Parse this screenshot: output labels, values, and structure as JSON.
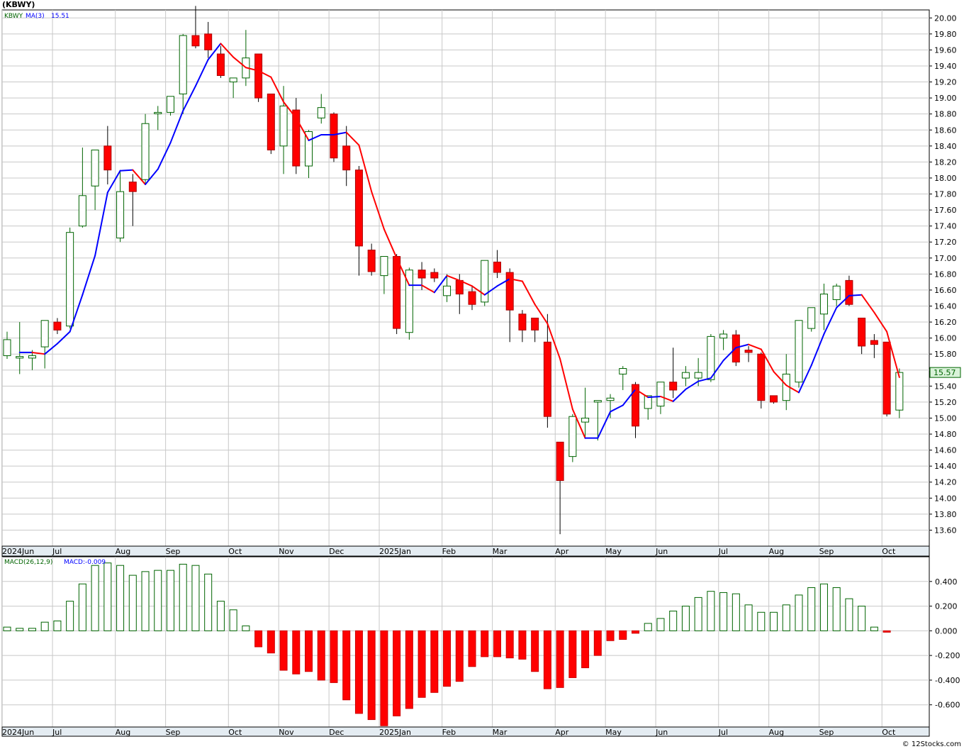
{
  "header": {
    "title": "(KBWY)"
  },
  "credit": "© 12Stocks.com",
  "colors": {
    "up": "#ffffff",
    "up_border": "#006400",
    "down": "#ff0000",
    "down_border": "#aa0000",
    "ma_up": "#0000ff",
    "ma_down": "#ff0000",
    "grid": "#c8c8c8",
    "macd_pos": "#ffffff",
    "macd_pos_border": "#006400",
    "macd_neg": "#ff0000",
    "last_price_bg": "#d9f2d9",
    "axis_band": "#e4ecf2"
  },
  "chart_data": [
    {
      "type": "candlestick",
      "legend": [
        {
          "label": "KBWY",
          "color": "#006400"
        },
        {
          "label": "MA(3)",
          "color": "#0000ff"
        },
        {
          "label": "15.51",
          "color": "#0000ff"
        }
      ],
      "last_price": "15.57",
      "ylim": [
        13.4,
        20.1
      ],
      "yticks": [
        "20.00",
        "19.80",
        "19.60",
        "19.40",
        "19.20",
        "19.00",
        "18.80",
        "18.60",
        "18.40",
        "18.20",
        "18.00",
        "17.80",
        "17.60",
        "17.40",
        "17.20",
        "17.00",
        "16.80",
        "16.60",
        "16.40",
        "16.20",
        "16.00",
        "15.80",
        "15.60",
        "15.40",
        "15.20",
        "15.00",
        "14.80",
        "14.60",
        "14.40",
        "14.20",
        "14.00",
        "13.80",
        "13.60"
      ],
      "month_labels": [
        "2024Jun",
        "Jul",
        "Aug",
        "Sep",
        "Oct",
        "Nov",
        "Dec",
        "2025Jan",
        "Feb",
        "Mar",
        "Apr",
        "May",
        "Jun",
        "Jul",
        "Aug",
        "Sep",
        "Oct"
      ],
      "month_weeks": [
        0,
        4,
        9,
        13,
        18,
        22,
        26,
        30,
        35,
        39,
        44,
        48,
        52,
        57,
        61,
        65,
        70
      ],
      "candles": [
        [
          15.78,
          16.08,
          15.74,
          15.98
        ],
        [
          15.75,
          16.2,
          15.55,
          15.77
        ],
        [
          15.75,
          15.85,
          15.6,
          15.78
        ],
        [
          15.89,
          16.22,
          15.62,
          16.22
        ],
        [
          16.2,
          16.25,
          16.05,
          16.1
        ],
        [
          16.15,
          17.38,
          16.12,
          17.32
        ],
        [
          17.4,
          18.38,
          17.38,
          17.78
        ],
        [
          17.9,
          18.35,
          17.6,
          18.35
        ],
        [
          18.4,
          18.65,
          17.92,
          18.1
        ],
        [
          17.25,
          18.1,
          17.2,
          17.83
        ],
        [
          17.95,
          18.05,
          17.4,
          17.83
        ],
        [
          17.98,
          18.8,
          17.93,
          18.68
        ],
        [
          18.82,
          18.9,
          18.6,
          18.82
        ],
        [
          18.82,
          19.02,
          18.78,
          19.02
        ],
        [
          19.05,
          19.8,
          18.8,
          19.78
        ],
        [
          19.78,
          20.15,
          19.62,
          19.65
        ],
        [
          19.8,
          19.95,
          19.5,
          19.6
        ],
        [
          19.55,
          19.65,
          19.25,
          19.28
        ],
        [
          19.2,
          19.25,
          19.0,
          19.25
        ],
        [
          19.25,
          19.85,
          19.15,
          19.5
        ],
        [
          19.55,
          19.55,
          18.95,
          19.0
        ],
        [
          19.05,
          19.05,
          18.3,
          18.35
        ],
        [
          18.4,
          19.15,
          18.05,
          18.9
        ],
        [
          18.85,
          19.0,
          18.05,
          18.15
        ],
        [
          18.15,
          18.6,
          18.0,
          18.58
        ],
        [
          18.75,
          19.05,
          18.68,
          18.88
        ],
        [
          18.8,
          18.82,
          18.2,
          18.25
        ],
        [
          18.4,
          18.65,
          17.9,
          18.1
        ],
        [
          18.1,
          18.15,
          16.78,
          17.15
        ],
        [
          17.1,
          17.18,
          16.78,
          16.83
        ],
        [
          16.78,
          17.0,
          16.55,
          17.02
        ],
        [
          17.02,
          17.05,
          16.05,
          16.12
        ],
        [
          16.07,
          16.88,
          15.98,
          16.85
        ],
        [
          16.85,
          16.95,
          16.6,
          16.75
        ],
        [
          16.82,
          16.87,
          16.7,
          16.75
        ],
        [
          16.53,
          16.8,
          16.45,
          16.65
        ],
        [
          16.72,
          16.8,
          16.3,
          16.55
        ],
        [
          16.58,
          16.65,
          16.35,
          16.42
        ],
        [
          16.45,
          16.95,
          16.4,
          16.97
        ],
        [
          16.95,
          17.1,
          16.75,
          16.82
        ],
        [
          16.82,
          16.87,
          15.95,
          16.35
        ],
        [
          16.3,
          16.35,
          15.95,
          16.1
        ],
        [
          16.25,
          16.25,
          15.95,
          16.1
        ],
        [
          15.95,
          16.3,
          14.88,
          15.02
        ],
        [
          14.7,
          14.7,
          13.55,
          14.22
        ],
        [
          14.52,
          15.05,
          14.45,
          15.02
        ],
        [
          14.95,
          15.38,
          14.75,
          15.0
        ],
        [
          15.2,
          15.22,
          14.72,
          15.22
        ],
        [
          15.22,
          15.3,
          15.0,
          15.25
        ],
        [
          15.55,
          15.65,
          15.35,
          15.62
        ],
        [
          15.42,
          15.45,
          14.75,
          14.9
        ],
        [
          15.12,
          15.28,
          14.98,
          15.28
        ],
        [
          15.15,
          15.45,
          15.05,
          15.45
        ],
        [
          15.45,
          15.88,
          15.25,
          15.35
        ],
        [
          15.5,
          15.65,
          15.4,
          15.57
        ],
        [
          15.5,
          15.75,
          15.4,
          15.57
        ],
        [
          15.48,
          16.05,
          15.45,
          16.02
        ],
        [
          16.0,
          16.1,
          15.85,
          16.05
        ],
        [
          16.04,
          16.1,
          15.65,
          15.7
        ],
        [
          15.85,
          15.9,
          15.7,
          15.82
        ],
        [
          15.8,
          15.82,
          15.12,
          15.22
        ],
        [
          15.28,
          15.28,
          15.18,
          15.2
        ],
        [
          15.22,
          15.8,
          15.1,
          15.55
        ],
        [
          15.45,
          16.22,
          15.38,
          16.22
        ],
        [
          16.12,
          16.38,
          16.08,
          16.38
        ],
        [
          16.3,
          16.68,
          16.1,
          16.55
        ],
        [
          16.48,
          16.68,
          16.4,
          16.65
        ],
        [
          16.72,
          16.78,
          16.4,
          16.42
        ],
        [
          16.25,
          16.25,
          15.8,
          15.9
        ],
        [
          15.97,
          16.05,
          15.75,
          15.92
        ],
        [
          15.95,
          15.95,
          15.02,
          15.05
        ],
        [
          15.1,
          15.62,
          15.0,
          15.57
        ]
      ],
      "ma": [
        [
          1,
          15.82
        ],
        [
          2,
          15.82
        ],
        [
          3,
          15.8
        ],
        [
          4,
          15.93
        ],
        [
          5,
          16.08
        ],
        [
          6,
          16.54
        ],
        [
          7,
          17.03
        ],
        [
          8,
          17.82
        ],
        [
          9,
          18.09
        ],
        [
          10,
          18.1
        ],
        [
          11,
          17.92
        ],
        [
          12,
          18.11
        ],
        [
          13,
          18.44
        ],
        [
          14,
          18.84
        ],
        [
          15,
          19.15
        ],
        [
          16,
          19.48
        ],
        [
          17,
          19.68
        ],
        [
          18,
          19.51
        ],
        [
          19,
          19.38
        ],
        [
          20,
          19.34
        ],
        [
          21,
          19.26
        ],
        [
          22,
          18.95
        ],
        [
          23,
          18.75
        ],
        [
          24,
          18.47
        ],
        [
          25,
          18.54
        ],
        [
          26,
          18.54
        ],
        [
          27,
          18.57
        ],
        [
          28,
          18.41
        ],
        [
          29,
          17.83
        ],
        [
          30,
          17.36
        ],
        [
          31,
          17.0
        ],
        [
          32,
          16.66
        ],
        [
          33,
          16.66
        ],
        [
          34,
          16.57
        ],
        [
          35,
          16.78
        ],
        [
          36,
          16.72
        ],
        [
          37,
          16.65
        ],
        [
          38,
          16.54
        ],
        [
          39,
          16.65
        ],
        [
          40,
          16.74
        ],
        [
          41,
          16.71
        ],
        [
          42,
          16.42
        ],
        [
          43,
          16.18
        ],
        [
          44,
          15.74
        ],
        [
          45,
          15.11
        ],
        [
          46,
          14.75
        ],
        [
          47,
          14.75
        ],
        [
          48,
          15.08
        ],
        [
          49,
          15.16
        ],
        [
          50,
          15.36
        ],
        [
          51,
          15.26
        ],
        [
          52,
          15.27
        ],
        [
          53,
          15.21
        ],
        [
          54,
          15.36
        ],
        [
          55,
          15.46
        ],
        [
          56,
          15.5
        ],
        [
          57,
          15.72
        ],
        [
          58,
          15.88
        ],
        [
          59,
          15.92
        ],
        [
          60,
          15.86
        ],
        [
          61,
          15.58
        ],
        [
          62,
          15.41
        ],
        [
          63,
          15.32
        ],
        [
          64,
          15.66
        ],
        [
          65,
          16.05
        ],
        [
          66,
          16.38
        ],
        [
          67,
          16.53
        ],
        [
          68,
          16.54
        ],
        [
          69,
          16.32
        ],
        [
          70,
          16.08
        ],
        [
          71,
          15.51
        ]
      ],
      "ma_colors": "rising=#0000ff,falling=#ff0000"
    },
    {
      "type": "bar",
      "legend": [
        {
          "label": "MACD(26,12,9)",
          "color": "#006400"
        },
        {
          "label": "MACD:-0.009",
          "color": "#0000ff"
        }
      ],
      "ylim": [
        -0.78,
        0.6
      ],
      "yticks": [
        "0.400",
        "0.200",
        "0.000",
        "-0.200",
        "-0.400",
        "-0.600"
      ],
      "values": [
        0.03,
        0.02,
        0.02,
        0.07,
        0.08,
        0.24,
        0.38,
        0.53,
        0.55,
        0.53,
        0.45,
        0.48,
        0.49,
        0.49,
        0.54,
        0.53,
        0.46,
        0.24,
        0.17,
        0.04,
        -0.13,
        -0.18,
        -0.32,
        -0.35,
        -0.33,
        -0.4,
        -0.42,
        -0.56,
        -0.67,
        -0.72,
        -0.77,
        -0.69,
        -0.63,
        -0.54,
        -0.5,
        -0.45,
        -0.41,
        -0.29,
        -0.21,
        -0.21,
        -0.22,
        -0.23,
        -0.33,
        -0.47,
        -0.46,
        -0.38,
        -0.3,
        -0.2,
        -0.08,
        -0.07,
        -0.02,
        0.06,
        0.1,
        0.16,
        0.2,
        0.27,
        0.32,
        0.31,
        0.3,
        0.21,
        0.15,
        0.15,
        0.21,
        0.29,
        0.35,
        0.38,
        0.35,
        0.26,
        0.2,
        0.03,
        -0.009
      ]
    }
  ]
}
